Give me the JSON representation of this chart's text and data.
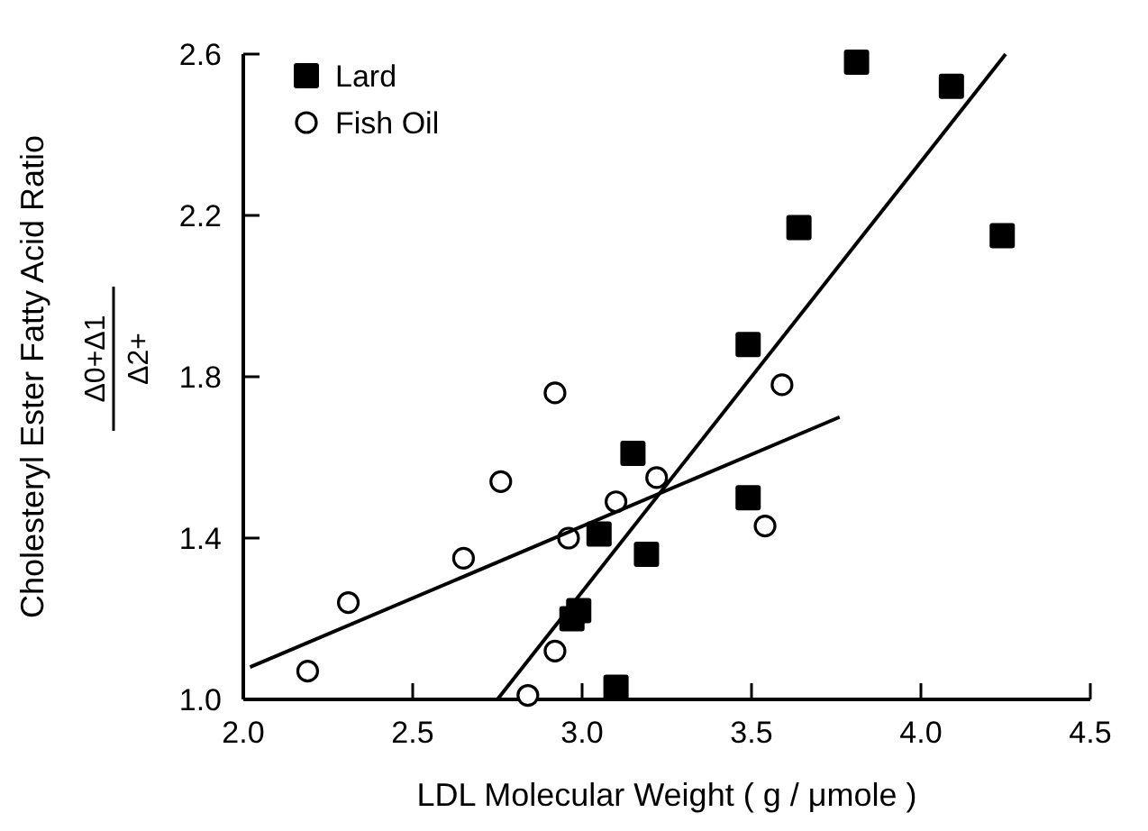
{
  "chart_data": {
    "type": "scatter",
    "xlabel": "LDL Molecular Weight ( g / μmole )",
    "ylabel": "Cholesteryl Ester Fatty Acid Ratio",
    "annotations": [
      "Δ0+Δ1",
      "Δ2+"
    ],
    "xlim": [
      2.0,
      4.5
    ],
    "ylim": [
      1.0,
      2.6
    ],
    "xticks": [
      {
        "value": 2.0,
        "label": "2.0"
      },
      2.5,
      {
        "value": 3.0,
        "label": "3.0"
      },
      3.5,
      {
        "value": 4.0,
        "label": "4.0"
      },
      4.5
    ],
    "yticks": [
      {
        "value": 1.0,
        "label": "1.0"
      },
      1.4,
      1.8,
      2.2,
      2.6
    ],
    "grid": false,
    "legend": "top left",
    "series": [
      {
        "name": "Lard",
        "color": "#000000",
        "marker": "square",
        "x": [
          3.49,
          3.15,
          3.05,
          3.19,
          3.49,
          2.99,
          2.97,
          3.1,
          3.81,
          4.09,
          3.64,
          4.24
        ],
        "values": [
          1.88,
          1.61,
          1.41,
          1.36,
          1.5,
          1.22,
          1.2,
          1.03,
          2.58,
          2.52,
          2.17,
          2.15
        ]
      },
      {
        "name": "Fish Oil",
        "color": "#000000",
        "marker": "circle",
        "x": [
          2.19,
          2.31,
          2.65,
          2.76,
          2.92,
          2.96,
          3.1,
          3.22,
          3.59,
          3.54,
          2.92,
          2.84
        ],
        "values": [
          1.07,
          1.24,
          1.35,
          1.54,
          1.76,
          1.4,
          1.49,
          1.55,
          1.78,
          1.43,
          1.12,
          1.01
        ]
      },
      {
        "type": "line",
        "color": "#000000",
        "marker": "none",
        "line_style": "solid",
        "x": [
          2.75,
          4.25
        ],
        "values": [
          1.0,
          2.6
        ]
      },
      {
        "type": "line",
        "color": "#000000",
        "marker": "none",
        "line_style": "solid",
        "x": [
          2.02,
          3.76
        ],
        "values": [
          1.08,
          1.7
        ]
      }
    ]
  }
}
